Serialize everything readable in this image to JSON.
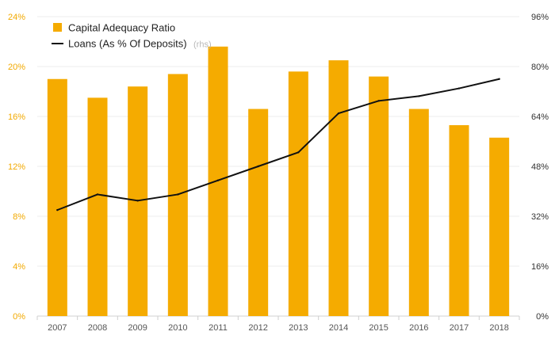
{
  "chart_data": {
    "type": "bar",
    "categories": [
      "2007",
      "2008",
      "2009",
      "2010",
      "2011",
      "2012",
      "2013",
      "2014",
      "2015",
      "2016",
      "2017",
      "2018"
    ],
    "series": [
      {
        "name": "Capital Adequacy Ratio",
        "type": "bar",
        "axis": "left",
        "color": "#f5ab00",
        "values": [
          19.0,
          17.5,
          18.4,
          19.4,
          21.6,
          16.6,
          19.6,
          20.5,
          19.2,
          16.6,
          15.3,
          14.3
        ]
      },
      {
        "name": "Loans (As % Of Deposits)",
        "name_note": "(rhs)",
        "type": "line",
        "axis": "right",
        "color": "#111111",
        "values": [
          34.0,
          39.0,
          37.0,
          39.0,
          43.5,
          48.0,
          52.5,
          65.0,
          69.0,
          70.5,
          73.0,
          76.0
        ]
      }
    ],
    "y_left": {
      "ylim": [
        0,
        24
      ],
      "ticks": [
        "0%",
        "4%",
        "8%",
        "12%",
        "16%",
        "20%",
        "24%"
      ],
      "color": "#f2a900"
    },
    "y_right": {
      "ylim": [
        0,
        96
      ],
      "ticks": [
        "0%",
        "16%",
        "32%",
        "48%",
        "64%",
        "80%",
        "96%"
      ],
      "color": "#333333"
    },
    "grid": true,
    "legend_position": "top-left"
  }
}
